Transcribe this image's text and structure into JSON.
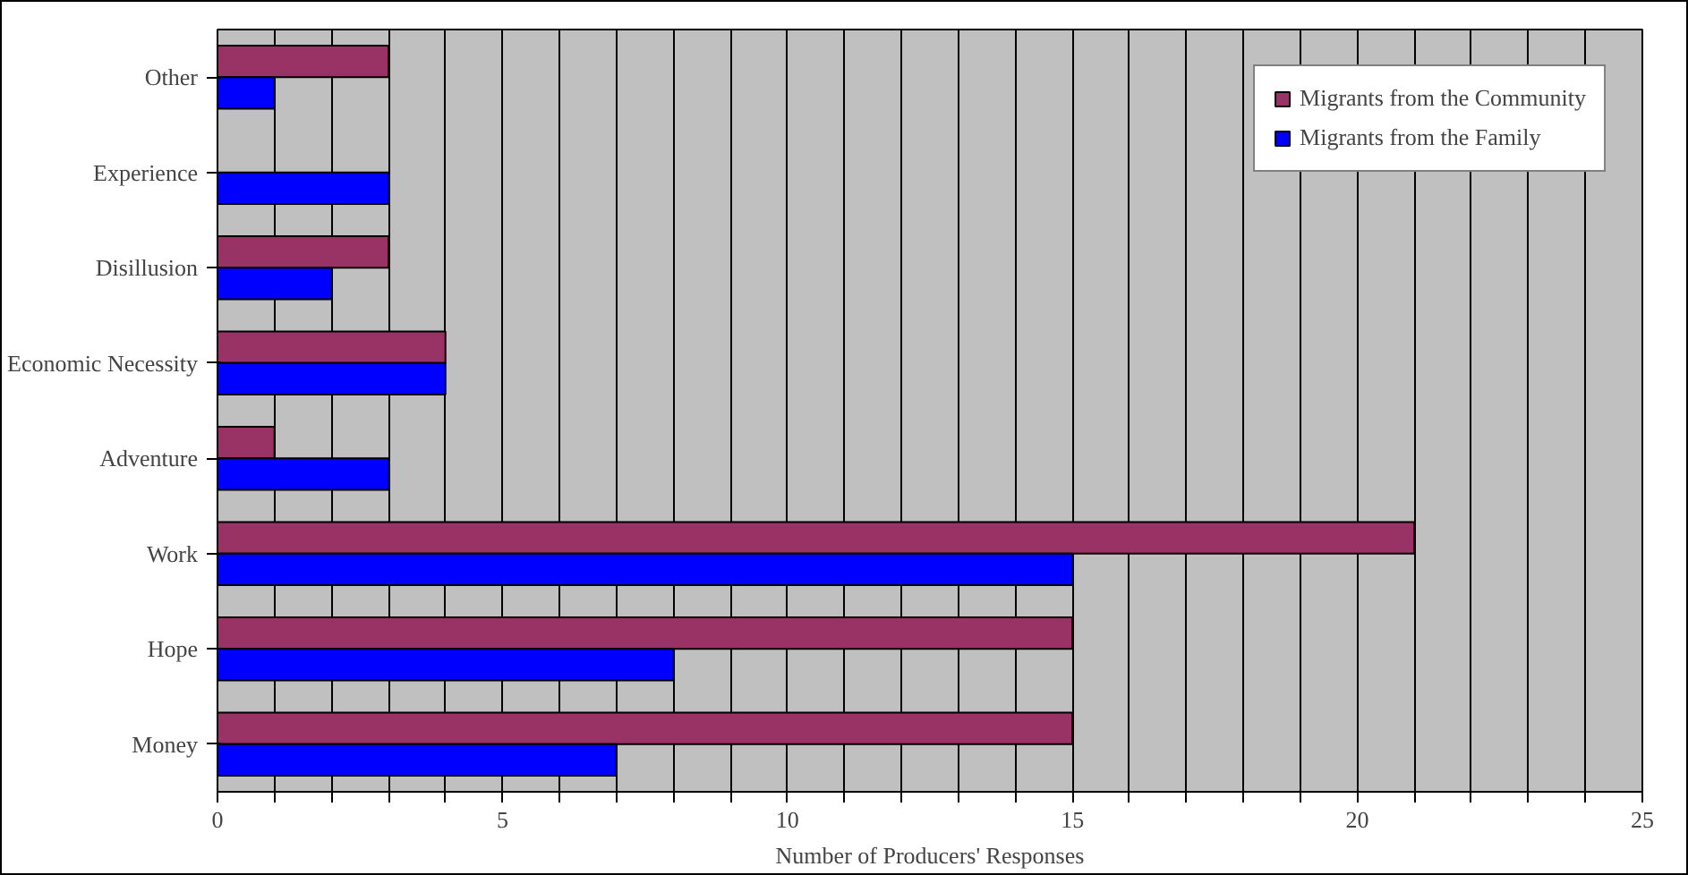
{
  "chart_data": {
    "type": "bar",
    "orientation": "horizontal",
    "xlabel": "Number of Producers' Responses",
    "categories": [
      "Other",
      "Experience",
      "Disillusion",
      "Economic Necessity",
      "Adventure",
      "Work",
      "Hope",
      "Money"
    ],
    "series": [
      {
        "name": "Migrants from the Community",
        "color": "#993366",
        "values": [
          3,
          null,
          3,
          4,
          1,
          21,
          15,
          15
        ]
      },
      {
        "name": "Migrants from the Family",
        "color": "#0000ff",
        "values": [
          1,
          3,
          2,
          4,
          3,
          15,
          8,
          7
        ]
      }
    ],
    "xlim": [
      0,
      25
    ],
    "xticks": [
      0,
      {
        "value": 1,
        "label": null
      },
      {
        "value": 2,
        "label": null
      },
      {
        "value": 3,
        "label": null
      },
      {
        "value": 4,
        "label": null
      },
      5,
      {
        "value": 6,
        "label": null
      },
      {
        "value": 7,
        "label": null
      },
      {
        "value": 8,
        "label": null
      },
      {
        "value": 9,
        "label": null
      },
      10,
      {
        "value": 11,
        "label": null
      },
      {
        "value": 12,
        "label": null
      },
      {
        "value": 13,
        "label": null
      },
      {
        "value": 14,
        "label": null
      },
      15,
      {
        "value": 16,
        "label": null
      },
      {
        "value": 17,
        "label": null
      },
      {
        "value": 18,
        "label": null
      },
      {
        "value": 19,
        "label": null
      },
      20,
      {
        "value": 21,
        "label": null
      },
      {
        "value": 22,
        "label": null
      },
      {
        "value": 23,
        "label": null
      },
      {
        "value": 24,
        "label": null
      },
      25
    ],
    "grid": "x",
    "legend": "top right"
  }
}
